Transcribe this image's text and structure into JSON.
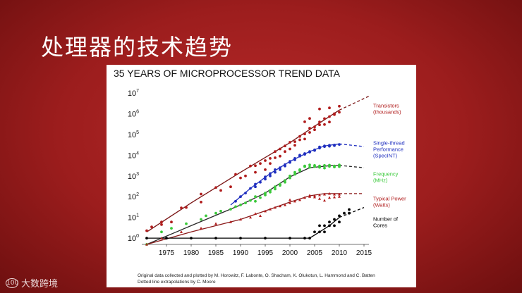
{
  "slide": {
    "title": "处理器的技术趋势"
  },
  "footer": {
    "logo_text": "大数跨境",
    "logo_mark": "100"
  },
  "chart_data": {
    "type": "scatter",
    "title": "35 YEARS OF MICROPROCESSOR TREND DATA",
    "yscale": "log",
    "ylim": [
      0.5,
      10000000
    ],
    "xlim": [
      1970,
      2016
    ],
    "x_ticks": [
      1975,
      1980,
      1985,
      1990,
      1995,
      2000,
      2005,
      2010,
      2015
    ],
    "y_ticks": [
      {
        "value": 1,
        "base": "10",
        "exp": "0"
      },
      {
        "value": 10,
        "base": "10",
        "exp": "1"
      },
      {
        "value": 100,
        "base": "10",
        "exp": "2"
      },
      {
        "value": 1000,
        "base": "10",
        "exp": "3"
      },
      {
        "value": 10000,
        "base": "10",
        "exp": "4"
      },
      {
        "value": 100000,
        "base": "10",
        "exp": "5"
      },
      {
        "value": 1000000,
        "base": "10",
        "exp": "6"
      },
      {
        "value": 10000000,
        "base": "10",
        "exp": "7"
      }
    ],
    "series": [
      {
        "name_lines": [
          "Transistors",
          "(thousands)"
        ],
        "color": "#b01c1c",
        "marker": "dot",
        "label_value": 1800000,
        "points": [
          [
            1971,
            2.3
          ],
          [
            1972,
            3.5
          ],
          [
            1974,
            4.5
          ],
          [
            1974,
            6
          ],
          [
            1976,
            6
          ],
          [
            1978,
            29
          ],
          [
            1979,
            30
          ],
          [
            1982,
            134
          ],
          [
            1982,
            55
          ],
          [
            1985,
            275
          ],
          [
            1986,
            200
          ],
          [
            1988,
            300
          ],
          [
            1989,
            1200
          ],
          [
            1990,
            800
          ],
          [
            1991,
            1000
          ],
          [
            1992,
            3000
          ],
          [
            1993,
            3100
          ],
          [
            1993,
            1500
          ],
          [
            1994,
            4000
          ],
          [
            1995,
            5500
          ],
          [
            1995,
            2000
          ],
          [
            1996,
            7000
          ],
          [
            1996,
            4000
          ],
          [
            1997,
            7500
          ],
          [
            1997,
            15000
          ],
          [
            1998,
            9000
          ],
          [
            1998,
            20000
          ],
          [
            1999,
            28000
          ],
          [
            1999,
            15000
          ],
          [
            2000,
            42000
          ],
          [
            2000,
            20000
          ],
          [
            2001,
            45000
          ],
          [
            2001,
            30000
          ],
          [
            2002,
            55000
          ],
          [
            2002,
            80000
          ],
          [
            2003,
            106000
          ],
          [
            2003,
            60000
          ],
          [
            2004,
            125000
          ],
          [
            2004,
            200000
          ],
          [
            2005,
            230000
          ],
          [
            2005,
            169000
          ],
          [
            2006,
            291000
          ],
          [
            2006,
            400000
          ],
          [
            2007,
            582000
          ],
          [
            2007,
            300000
          ],
          [
            2008,
            731000
          ],
          [
            2008,
            400000
          ],
          [
            2009,
            904000
          ],
          [
            2009,
            1000000
          ],
          [
            2010,
            1170000
          ],
          [
            2010,
            2300000
          ],
          [
            2008,
            1900000
          ],
          [
            2006,
            1700000
          ],
          [
            2004,
            592000
          ],
          [
            2003,
            410000
          ]
        ],
        "trend": [
          [
            1971,
            2
          ],
          [
            1980,
            50
          ],
          [
            1990,
            1500
          ],
          [
            2000,
            40000
          ],
          [
            2005,
            250000
          ],
          [
            2010,
            1500000
          ]
        ],
        "extrapolation": [
          [
            2010,
            1500000
          ],
          [
            2016,
            7000000
          ]
        ]
      },
      {
        "name_lines": [
          "Single-thread",
          "Performance",
          "(SpecINT)"
        ],
        "color": "#1f2fbf",
        "marker": "dot",
        "label_value": 20000,
        "points": [
          [
            1989,
            60
          ],
          [
            1990,
            100
          ],
          [
            1991,
            150
          ],
          [
            1992,
            250
          ],
          [
            1993,
            300
          ],
          [
            1993,
            400
          ],
          [
            1994,
            500
          ],
          [
            1995,
            700
          ],
          [
            1995,
            900
          ],
          [
            1996,
            1000
          ],
          [
            1996,
            1300
          ],
          [
            1997,
            1500
          ],
          [
            1997,
            2000
          ],
          [
            1998,
            2500
          ],
          [
            1998,
            2000
          ],
          [
            1999,
            3500
          ],
          [
            1999,
            3000
          ],
          [
            2000,
            4500
          ],
          [
            2000,
            5000
          ],
          [
            2001,
            6000
          ],
          [
            2001,
            7000
          ],
          [
            2002,
            9000
          ],
          [
            2002,
            10000
          ],
          [
            2003,
            12000
          ],
          [
            2003,
            11000
          ],
          [
            2004,
            14000
          ],
          [
            2004,
            15000
          ],
          [
            2005,
            18000
          ],
          [
            2005,
            17000
          ],
          [
            2006,
            22000
          ],
          [
            2006,
            25000
          ],
          [
            2007,
            26000
          ],
          [
            2007,
            28000
          ],
          [
            2008,
            30000
          ],
          [
            2008,
            27000
          ],
          [
            2009,
            31000
          ],
          [
            2009,
            29000
          ],
          [
            2010,
            33000
          ]
        ],
        "trend": [
          [
            1988,
            40
          ],
          [
            1992,
            250
          ],
          [
            1996,
            1300
          ],
          [
            2000,
            5000
          ],
          [
            2004,
            15000
          ],
          [
            2007,
            28000
          ],
          [
            2010,
            35000
          ]
        ],
        "extrapolation": [
          [
            2010,
            35000
          ],
          [
            2015,
            26000
          ]
        ]
      },
      {
        "name_lines": [
          "Frequency",
          "(MHz)"
        ],
        "color": "#3ac93a",
        "marker": "dot",
        "label_value": 900,
        "points": [
          [
            1971,
            0.5
          ],
          [
            1974,
            2
          ],
          [
            1976,
            3
          ],
          [
            1979,
            5
          ],
          [
            1982,
            8
          ],
          [
            1983,
            12
          ],
          [
            1985,
            16
          ],
          [
            1986,
            20
          ],
          [
            1988,
            25
          ],
          [
            1989,
            33
          ],
          [
            1990,
            40
          ],
          [
            1991,
            50
          ],
          [
            1992,
            66
          ],
          [
            1993,
            60
          ],
          [
            1993,
            100
          ],
          [
            1994,
            90
          ],
          [
            1995,
            120
          ],
          [
            1995,
            150
          ],
          [
            1996,
            200
          ],
          [
            1996,
            166
          ],
          [
            1997,
            233
          ],
          [
            1997,
            300
          ],
          [
            1998,
            400
          ],
          [
            1998,
            350
          ],
          [
            1999,
            500
          ],
          [
            1999,
            600
          ],
          [
            2000,
            800
          ],
          [
            2000,
            1000
          ],
          [
            2001,
            1200
          ],
          [
            2001,
            1500
          ],
          [
            2002,
            2000
          ],
          [
            2002,
            1800
          ],
          [
            2003,
            2800
          ],
          [
            2003,
            3000
          ],
          [
            2004,
            3400
          ],
          [
            2004,
            2600
          ],
          [
            2005,
            3200
          ],
          [
            2005,
            2800
          ],
          [
            2006,
            3000
          ],
          [
            2006,
            2600
          ],
          [
            2007,
            3200
          ],
          [
            2007,
            2400
          ],
          [
            2008,
            3300
          ],
          [
            2008,
            2900
          ],
          [
            2009,
            3000
          ],
          [
            2009,
            2700
          ],
          [
            2010,
            3400
          ],
          [
            2010,
            2800
          ]
        ],
        "trend": [
          [
            1971,
            0.5
          ],
          [
            1980,
            4
          ],
          [
            1990,
            40
          ],
          [
            1995,
            150
          ],
          [
            2000,
            900
          ],
          [
            2004,
            2500
          ],
          [
            2008,
            3100
          ],
          [
            2010,
            3200
          ]
        ],
        "extrapolation": [
          [
            2010,
            3200
          ],
          [
            2015,
            2500
          ]
        ]
      },
      {
        "name_lines": [
          "Typical Power",
          "(Watts)"
        ],
        "color": "#b01c1c",
        "marker": "triangle",
        "label_value": 60,
        "points": [
          [
            1971,
            0.5
          ],
          [
            1974,
            1
          ],
          [
            1978,
            2
          ],
          [
            1982,
            3
          ],
          [
            1985,
            5
          ],
          [
            1988,
            6
          ],
          [
            1990,
            8
          ],
          [
            1992,
            10
          ],
          [
            1993,
            15
          ],
          [
            1994,
            12
          ],
          [
            1995,
            20
          ],
          [
            1996,
            25
          ],
          [
            1997,
            30
          ],
          [
            1998,
            35
          ],
          [
            1999,
            40
          ],
          [
            2000,
            50
          ],
          [
            2000,
            70
          ],
          [
            2001,
            60
          ],
          [
            2002,
            70
          ],
          [
            2003,
            90
          ],
          [
            2004,
            100
          ],
          [
            2004,
            115
          ],
          [
            2005,
            110
          ],
          [
            2005,
            95
          ],
          [
            2006,
            120
          ],
          [
            2006,
            80
          ],
          [
            2007,
            130
          ],
          [
            2007,
            65
          ],
          [
            2008,
            140
          ],
          [
            2008,
            90
          ],
          [
            2009,
            130
          ],
          [
            2009,
            95
          ],
          [
            2010,
            130
          ],
          [
            2010,
            100
          ]
        ],
        "trend": [
          [
            1971,
            0.5
          ],
          [
            1980,
            2
          ],
          [
            1990,
            8
          ],
          [
            1996,
            25
          ],
          [
            2000,
            55
          ],
          [
            2004,
            110
          ],
          [
            2007,
            140
          ],
          [
            2010,
            140
          ]
        ],
        "extrapolation": [
          [
            2010,
            140
          ],
          [
            2015,
            140
          ]
        ]
      },
      {
        "name_lines": [
          "Number of",
          "Cores"
        ],
        "color": "#000000",
        "marker": "dot",
        "label_value": 6,
        "points": [
          [
            1971,
            1
          ],
          [
            1975,
            1
          ],
          [
            1980,
            1
          ],
          [
            1985,
            1
          ],
          [
            1990,
            1
          ],
          [
            1995,
            1
          ],
          [
            2000,
            1
          ],
          [
            2003,
            1
          ],
          [
            2004,
            1
          ],
          [
            2005,
            2
          ],
          [
            2006,
            2
          ],
          [
            2006,
            4
          ],
          [
            2007,
            4
          ],
          [
            2007,
            2
          ],
          [
            2008,
            4
          ],
          [
            2008,
            6
          ],
          [
            2009,
            4
          ],
          [
            2009,
            8
          ],
          [
            2010,
            6
          ],
          [
            2010,
            12
          ],
          [
            2011,
            16
          ],
          [
            2012,
            24
          ],
          [
            2012,
            16
          ]
        ],
        "trend": [
          [
            1971,
            1
          ],
          [
            2004,
            1
          ],
          [
            2006,
            2
          ],
          [
            2008,
            4
          ],
          [
            2010,
            10
          ]
        ],
        "extrapolation": [
          [
            2010,
            10
          ],
          [
            2015,
            30
          ]
        ]
      }
    ],
    "footnote_lines": [
      "Original data collected and plotted by M. Horowitz, F. Labonte, O. Shacham, K. Olukotun, L. Hammond and C. Batten",
      "Dotted line extrapolations by C. Moore"
    ]
  }
}
